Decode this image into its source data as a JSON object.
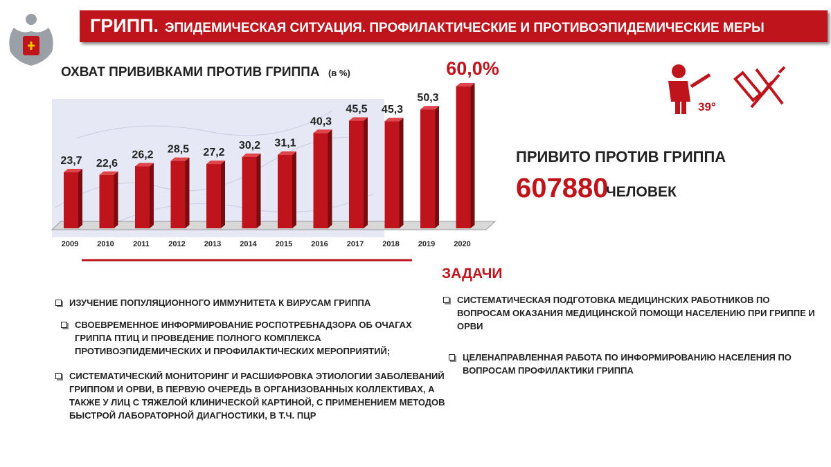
{
  "header": {
    "title": "ГРИПП.",
    "subtitle": "ЭПИДЕМИЧЕСКАЯ СИТУАЦИЯ. ПРОФИЛАКТИЧЕСКИЕ И ПРОТИВОЭПИДЕМИЧЕСКИЕ МЕРЫ"
  },
  "chart_data": {
    "type": "bar",
    "title": "ОХВАТ ПРИВИВКАМИ ПРОТИВ ГРИППА",
    "subtitle": "(в %)",
    "categories": [
      "2009",
      "2010",
      "2011",
      "2012",
      "2013",
      "2014",
      "2015",
      "2016",
      "2017",
      "2018",
      "2019",
      "2020"
    ],
    "values": [
      23.7,
      22.6,
      26.2,
      28.5,
      27.2,
      30.2,
      31.1,
      40.3,
      45.5,
      45.3,
      50.3,
      60.0
    ],
    "value_labels": [
      "23,7",
      "22,6",
      "26,2",
      "28,5",
      "27,2",
      "30,2",
      "31,1",
      "40,3",
      "45,5",
      "45,3",
      "50,3",
      "60,0%"
    ],
    "color": "#c0141c"
  },
  "icons": {
    "temperature": "39°"
  },
  "stats": {
    "label": "ПРИВИТО ПРОТИВ ГРИППА",
    "number": "607880",
    "unit": "ЧЕЛОВЕК"
  },
  "tasks": {
    "heading": "ЗАДАЧИ",
    "left": [
      "ИЗУЧЕНИЕ ПОПУЛЯЦИОННОГО ИММУНИТЕТА К ВИРУСАМ ГРИППА",
      "СВОЕВРЕМЕННОЕ ИНФОРМИРОВАНИЕ РОСПОТРЕБНАДЗОРА ОБ ОЧАГАХ ГРИППА ПТИЦ И ПРОВЕДЕНИЕ ПОЛНОГО КОМПЛЕКСА ПРОТИВОЭПИДЕМИЧЕСКИХ И ПРОФИЛАКТИЧЕСКИХ МЕРОПРИЯТИЙ;",
      "СИСТЕМАТИЧЕСКИЙ МОНИТОРИНГ И РАСШИФРОВКА ЭТИОЛОГИИ ЗАБОЛЕВАНИЙ ГРИППОМ И ОРВИ, В ПЕРВУЮ ОЧЕРЕДЬ В ОРГАНИЗОВАННЫХ КОЛЛЕКТИВАХ, А ТАКЖЕ У ЛИЦ С ТЯЖЕЛОЙ КЛИНИЧЕСКОЙ КАРТИНОЙ, С ПРИМЕНЕНИЕМ МЕТОДОВ БЫСТРОЙ ЛАБОРАТОРНОЙ ДИАГНОСТИКИ, В Т.Ч. ПЦР"
    ],
    "right": [
      "СИСТЕМАТИЧЕСКАЯ ПОДГОТОВКА МЕДИЦИНСКИХ РАБОТНИКОВ ПО ВОПРОСАМ ОКАЗАНИЯ МЕДИЦИНСКОЙ ПОМОЩИ НАСЕЛЕНИЮ ПРИ ГРИППЕ И ОРВИ",
      "ЦЕЛЕНАПРАВЛЕННАЯ РАБОТА ПО ИНФОРМИРОВАНИЮ НАСЕЛЕНИЯ ПО ВОПРОСАМ ПРОФИЛАКТИКИ ГРИППА"
    ]
  }
}
